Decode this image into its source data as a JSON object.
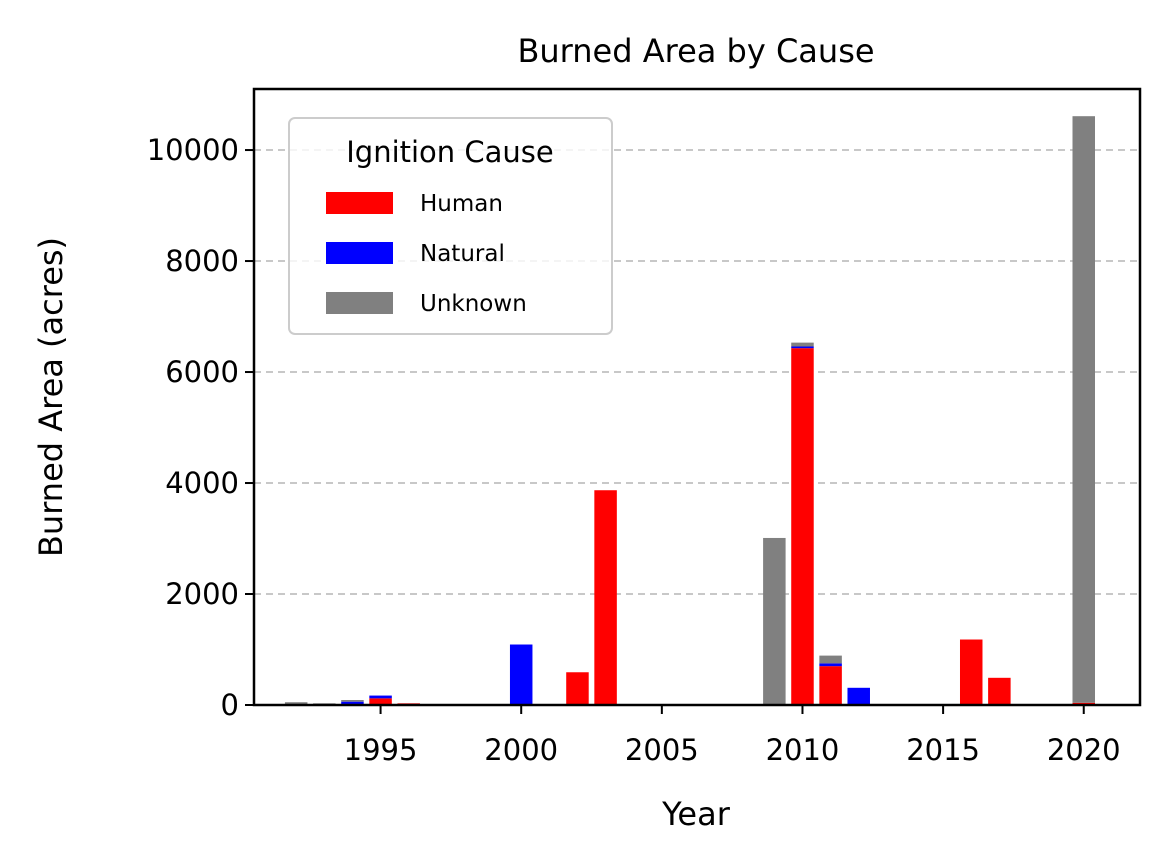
{
  "chart_data": {
    "type": "bar",
    "stacked": true,
    "title": "Burned Area by Cause",
    "xlabel": "Year",
    "ylabel": "Burned Area (acres)",
    "xlim": [
      1990.5,
      2022
    ],
    "ylim": [
      0,
      11100
    ],
    "xticks": [
      1995,
      2000,
      2005,
      2010,
      2015,
      2020
    ],
    "yticks": [
      0,
      2000,
      4000,
      6000,
      8000,
      10000
    ],
    "grid": "y dashed",
    "legend": {
      "title": "Ignition Cause",
      "placement": "top-left",
      "entries": [
        "Human",
        "Natural",
        "Unknown"
      ]
    },
    "x": [
      1992,
      1993,
      1994,
      1995,
      1996,
      2000,
      2002,
      2003,
      2009,
      2010,
      2011,
      2012,
      2016,
      2017,
      2020
    ],
    "series": [
      {
        "name": "Human",
        "color": "#ff0000",
        "values": [
          0,
          0,
          0,
          120,
          30,
          0,
          590,
          3870,
          0,
          6430,
          700,
          0,
          1180,
          490,
          40
        ]
      },
      {
        "name": "Natural",
        "color": "#0000ff",
        "values": [
          0,
          0,
          60,
          50,
          0,
          1090,
          0,
          0,
          0,
          30,
          50,
          310,
          0,
          0,
          0
        ]
      },
      {
        "name": "Unknown",
        "color": "#808080",
        "values": [
          50,
          30,
          30,
          0,
          0,
          0,
          0,
          0,
          3010,
          70,
          140,
          0,
          0,
          0,
          10570
        ]
      }
    ]
  }
}
